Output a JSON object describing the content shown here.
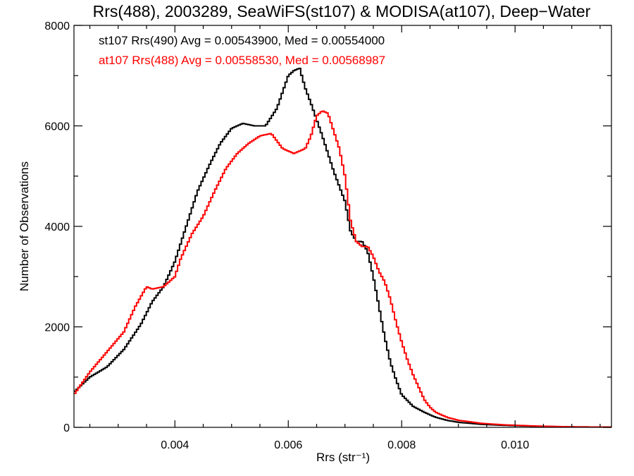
{
  "chart_data": {
    "type": "line",
    "subtype": "step-histogram",
    "title": "Rrs(488), 2003289, SeaWiFS(st107) & MODISA(at107), Deep−Water",
    "xlabel": "Rrs (str⁻¹)",
    "ylabel": "Number of Observations",
    "xlim": [
      0.00222,
      0.0117
    ],
    "ylim": [
      0,
      8000
    ],
    "xticks": [
      {
        "value": 0.004,
        "label": "0.004"
      },
      {
        "value": 0.006,
        "label": "0.006"
      },
      {
        "value": 0.008,
        "label": "0.008"
      },
      {
        "value": 0.01,
        "label": "0.010"
      }
    ],
    "yticks": [
      {
        "value": 0,
        "label": "0"
      },
      {
        "value": 2000,
        "label": "2000"
      },
      {
        "value": 4000,
        "label": "4000"
      },
      {
        "value": 6000,
        "label": "6000"
      },
      {
        "value": 8000,
        "label": "8000"
      }
    ],
    "grid": false,
    "legend_position": "top-left",
    "series": [
      {
        "name": "st107 Rrs(490) Avg = 0.00543900, Med = 0.00554000",
        "color": "#000000",
        "points": [
          [
            0.00222,
            700
          ],
          [
            0.0025,
            1000
          ],
          [
            0.0028,
            1200
          ],
          [
            0.0031,
            1550
          ],
          [
            0.0034,
            2050
          ],
          [
            0.0036,
            2500
          ],
          [
            0.0038,
            2800
          ],
          [
            0.004,
            3300
          ],
          [
            0.0042,
            4000
          ],
          [
            0.0044,
            4700
          ],
          [
            0.0046,
            5200
          ],
          [
            0.0048,
            5650
          ],
          [
            0.005,
            5950
          ],
          [
            0.0052,
            6050
          ],
          [
            0.0054,
            6000
          ],
          [
            0.0056,
            6000
          ],
          [
            0.0058,
            6350
          ],
          [
            0.006,
            7000
          ],
          [
            0.0061,
            7100
          ],
          [
            0.0062,
            7150
          ],
          [
            0.0063,
            6750
          ],
          [
            0.0064,
            6450
          ],
          [
            0.0066,
            5800
          ],
          [
            0.0068,
            5100
          ],
          [
            0.007,
            4500
          ],
          [
            0.0071,
            3900
          ],
          [
            0.0072,
            3700
          ],
          [
            0.0073,
            3700
          ],
          [
            0.0074,
            3500
          ],
          [
            0.0075,
            3000
          ],
          [
            0.0076,
            2400
          ],
          [
            0.0077,
            1800
          ],
          [
            0.0078,
            1300
          ],
          [
            0.0079,
            950
          ],
          [
            0.008,
            650
          ],
          [
            0.0082,
            420
          ],
          [
            0.0084,
            300
          ],
          [
            0.0086,
            200
          ],
          [
            0.0088,
            140
          ],
          [
            0.009,
            100
          ],
          [
            0.0094,
            60
          ],
          [
            0.0098,
            40
          ],
          [
            0.0104,
            20
          ],
          [
            0.011,
            10
          ],
          [
            0.0117,
            5
          ]
        ]
      },
      {
        "name": "at107 Rrs(488) Avg = 0.00558530, Med = 0.00568987",
        "color": "#ff0000",
        "points": [
          [
            0.00222,
            650
          ],
          [
            0.0025,
            1100
          ],
          [
            0.0028,
            1500
          ],
          [
            0.0031,
            1900
          ],
          [
            0.0033,
            2400
          ],
          [
            0.0035,
            2800
          ],
          [
            0.0036,
            2750
          ],
          [
            0.0038,
            2800
          ],
          [
            0.004,
            3000
          ],
          [
            0.0041,
            3350
          ],
          [
            0.0043,
            3850
          ],
          [
            0.0045,
            4200
          ],
          [
            0.0047,
            4700
          ],
          [
            0.0049,
            5150
          ],
          [
            0.0051,
            5450
          ],
          [
            0.0053,
            5650
          ],
          [
            0.0055,
            5800
          ],
          [
            0.0057,
            5850
          ],
          [
            0.0059,
            5550
          ],
          [
            0.0061,
            5450
          ],
          [
            0.0063,
            5550
          ],
          [
            0.0064,
            5800
          ],
          [
            0.0065,
            6200
          ],
          [
            0.0066,
            6300
          ],
          [
            0.0067,
            6250
          ],
          [
            0.0068,
            5900
          ],
          [
            0.0069,
            5550
          ],
          [
            0.007,
            5000
          ],
          [
            0.0071,
            4100
          ],
          [
            0.0072,
            3700
          ],
          [
            0.0073,
            3600
          ],
          [
            0.0074,
            3600
          ],
          [
            0.0075,
            3400
          ],
          [
            0.0076,
            3100
          ],
          [
            0.0077,
            2900
          ],
          [
            0.0078,
            2550
          ],
          [
            0.0079,
            2100
          ],
          [
            0.008,
            1700
          ],
          [
            0.0081,
            1350
          ],
          [
            0.0082,
            1050
          ],
          [
            0.0083,
            800
          ],
          [
            0.0084,
            550
          ],
          [
            0.0085,
            400
          ],
          [
            0.0086,
            300
          ],
          [
            0.0088,
            200
          ],
          [
            0.009,
            140
          ],
          [
            0.0094,
            80
          ],
          [
            0.0098,
            50
          ],
          [
            0.0104,
            25
          ],
          [
            0.011,
            10
          ],
          [
            0.0117,
            5
          ]
        ]
      }
    ]
  }
}
